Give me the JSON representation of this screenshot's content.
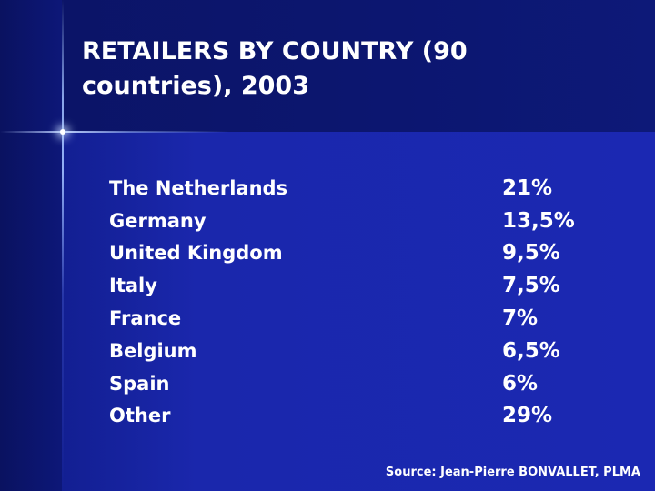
{
  "slide": {
    "title": "RETAILERS BY COUNTRY (90 countries), 2003",
    "rows": [
      {
        "country": "The Netherlands",
        "value": "21%"
      },
      {
        "country": "Germany",
        "value": "13,5%"
      },
      {
        "country": "United Kingdom",
        "value": "9,5%"
      },
      {
        "country": "Italy",
        "value": "7,5%"
      },
      {
        "country": "France",
        "value": "7%"
      },
      {
        "country": "Belgium",
        "value": "6,5%"
      },
      {
        "country": "Spain",
        "value": "6%"
      },
      {
        "country": "Other",
        "value": "29%"
      }
    ],
    "source": "Source: Jean-Pierre BONVALLET, PLMA"
  },
  "colors": {
    "background": "#1a24a6",
    "header_band": "#0c1670",
    "text": "#ffffff"
  }
}
